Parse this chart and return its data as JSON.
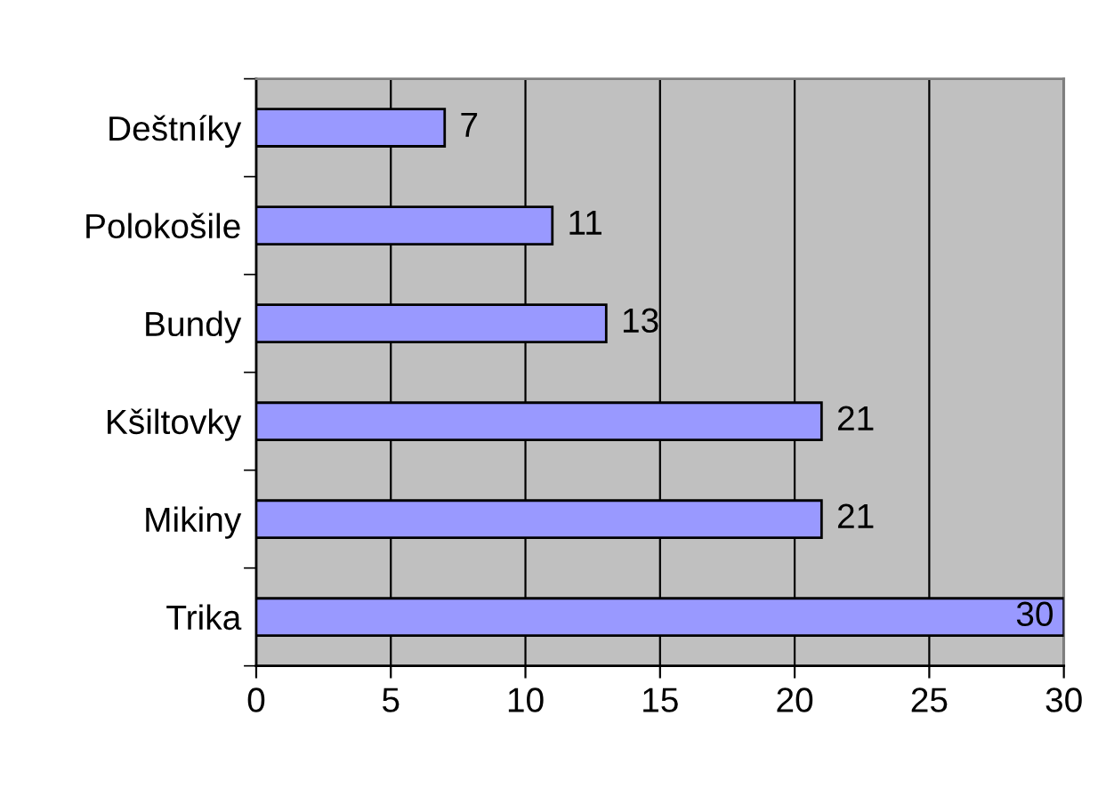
{
  "chart_data": {
    "type": "bar",
    "orientation": "horizontal",
    "categories": [
      "Deštníky",
      "Polokošile",
      "Bundy",
      "Kšiltovky",
      "Mikiny",
      "Trika"
    ],
    "values": [
      7,
      11,
      13,
      21,
      21,
      30
    ],
    "color": "#9999ff",
    "xlim": [
      0,
      30
    ],
    "xticks": [
      0,
      5,
      10,
      15,
      20,
      25,
      30
    ],
    "grid": "x",
    "data_labels": true
  }
}
